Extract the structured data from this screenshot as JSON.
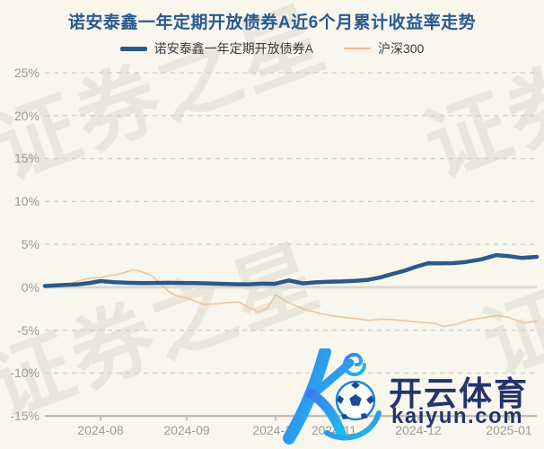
{
  "title": "诺安泰鑫一年定期开放债券A近6个月累计收益率走势",
  "legend": [
    {
      "label": "诺安泰鑫一年定期开放债券A",
      "color": "#2b598a"
    },
    {
      "label": "沪深300",
      "color": "#f2bb90"
    }
  ],
  "watermark": {
    "text": "证券之星"
  },
  "logo": {
    "brand": "开云体育",
    "domain": "kaiyun.com",
    "letter": "K"
  },
  "colors": {
    "background": "#f9f6ee",
    "title": "#2a5a8e",
    "fund_line": "#2b598a",
    "index_line": "#eec49b",
    "grid_dashed": "#d2cfc7",
    "grid_zero": "#dedad1",
    "axis": "#b6b3ab",
    "tick_text": "#9b9b97",
    "logo_navy": "#24356d",
    "logo_gradient_start": "#3a7bf5",
    "logo_gradient_end": "#1dbde8"
  },
  "chart_data": {
    "type": "line",
    "title": "诺安泰鑫一年定期开放债券A近6个月累计收益率走势",
    "unit": "%",
    "grid": "horizontal dashed, zero line solid",
    "legend_position": "top center",
    "y_axis": {
      "range": [
        -15,
        25
      ],
      "values": [
        25,
        20,
        15,
        10,
        5,
        0,
        -5,
        -10,
        -15
      ],
      "labels": [
        "25%",
        "20%",
        "15%",
        "10%",
        "5%",
        "0%",
        "-5%",
        "-10%",
        "-15%"
      ]
    },
    "x_axis": {
      "labels": [
        "2024-08",
        "2024-09",
        "2024-10",
        "2024-11",
        "2024-12",
        "2025-01"
      ],
      "positions": [
        0.1131,
        0.2883,
        0.4689,
        0.5876,
        0.7591,
        0.9434
      ]
    },
    "series": [
      {
        "name": "诺安泰鑫一年定期开放债券A",
        "color": "#2b598a",
        "width": 4.5,
        "points": [
          [
            0.0,
            0.15
          ],
          [
            0.033,
            0.25
          ],
          [
            0.064,
            0.32
          ],
          [
            0.091,
            0.5
          ],
          [
            0.113,
            0.72
          ],
          [
            0.141,
            0.6
          ],
          [
            0.168,
            0.52
          ],
          [
            0.197,
            0.48
          ],
          [
            0.223,
            0.5
          ],
          [
            0.252,
            0.52
          ],
          [
            0.279,
            0.5
          ],
          [
            0.307,
            0.48
          ],
          [
            0.334,
            0.45
          ],
          [
            0.361,
            0.4
          ],
          [
            0.387,
            0.36
          ],
          [
            0.414,
            0.35
          ],
          [
            0.442,
            0.42
          ],
          [
            0.467,
            0.4
          ],
          [
            0.496,
            0.8
          ],
          [
            0.524,
            0.45
          ],
          [
            0.551,
            0.58
          ],
          [
            0.577,
            0.65
          ],
          [
            0.604,
            0.68
          ],
          [
            0.631,
            0.75
          ],
          [
            0.657,
            0.87
          ],
          [
            0.682,
            1.15
          ],
          [
            0.706,
            1.55
          ],
          [
            0.732,
            1.95
          ],
          [
            0.755,
            2.4
          ],
          [
            0.779,
            2.8
          ],
          [
            0.805,
            2.78
          ],
          [
            0.83,
            2.82
          ],
          [
            0.856,
            2.95
          ],
          [
            0.887,
            3.25
          ],
          [
            0.918,
            3.75
          ],
          [
            0.943,
            3.62
          ],
          [
            0.969,
            3.42
          ],
          [
            1.0,
            3.55
          ]
        ]
      },
      {
        "name": "沪深300",
        "color": "#eec49b",
        "width": 1.6,
        "points": [
          [
            0.0,
            0.0
          ],
          [
            0.022,
            0.1
          ],
          [
            0.046,
            0.3
          ],
          [
            0.069,
            0.76
          ],
          [
            0.091,
            1.05
          ],
          [
            0.113,
            1.15
          ],
          [
            0.139,
            1.4
          ],
          [
            0.164,
            1.75
          ],
          [
            0.179,
            2.05
          ],
          [
            0.197,
            1.8
          ],
          [
            0.219,
            1.3
          ],
          [
            0.237,
            0.3
          ],
          [
            0.252,
            -0.5
          ],
          [
            0.268,
            -1.0
          ],
          [
            0.296,
            -1.4
          ],
          [
            0.323,
            -2.0
          ],
          [
            0.347,
            -1.95
          ],
          [
            0.37,
            -1.8
          ],
          [
            0.394,
            -1.7
          ],
          [
            0.416,
            -2.4
          ],
          [
            0.434,
            -2.9
          ],
          [
            0.453,
            -2.4
          ],
          [
            0.469,
            -0.9
          ],
          [
            0.489,
            -1.6
          ],
          [
            0.511,
            -2.2
          ],
          [
            0.535,
            -2.7
          ],
          [
            0.557,
            -3.0
          ],
          [
            0.58,
            -3.3
          ],
          [
            0.608,
            -3.5
          ],
          [
            0.633,
            -3.65
          ],
          [
            0.659,
            -3.85
          ],
          [
            0.686,
            -3.7
          ],
          [
            0.714,
            -3.8
          ],
          [
            0.741,
            -3.95
          ],
          [
            0.766,
            -4.1
          ],
          [
            0.792,
            -4.2
          ],
          [
            0.81,
            -4.55
          ],
          [
            0.834,
            -4.35
          ],
          [
            0.86,
            -3.85
          ],
          [
            0.887,
            -3.6
          ],
          [
            0.918,
            -3.3
          ],
          [
            0.943,
            -3.5
          ],
          [
            0.973,
            -4.15
          ],
          [
            1.0,
            -3.95
          ]
        ]
      }
    ]
  }
}
